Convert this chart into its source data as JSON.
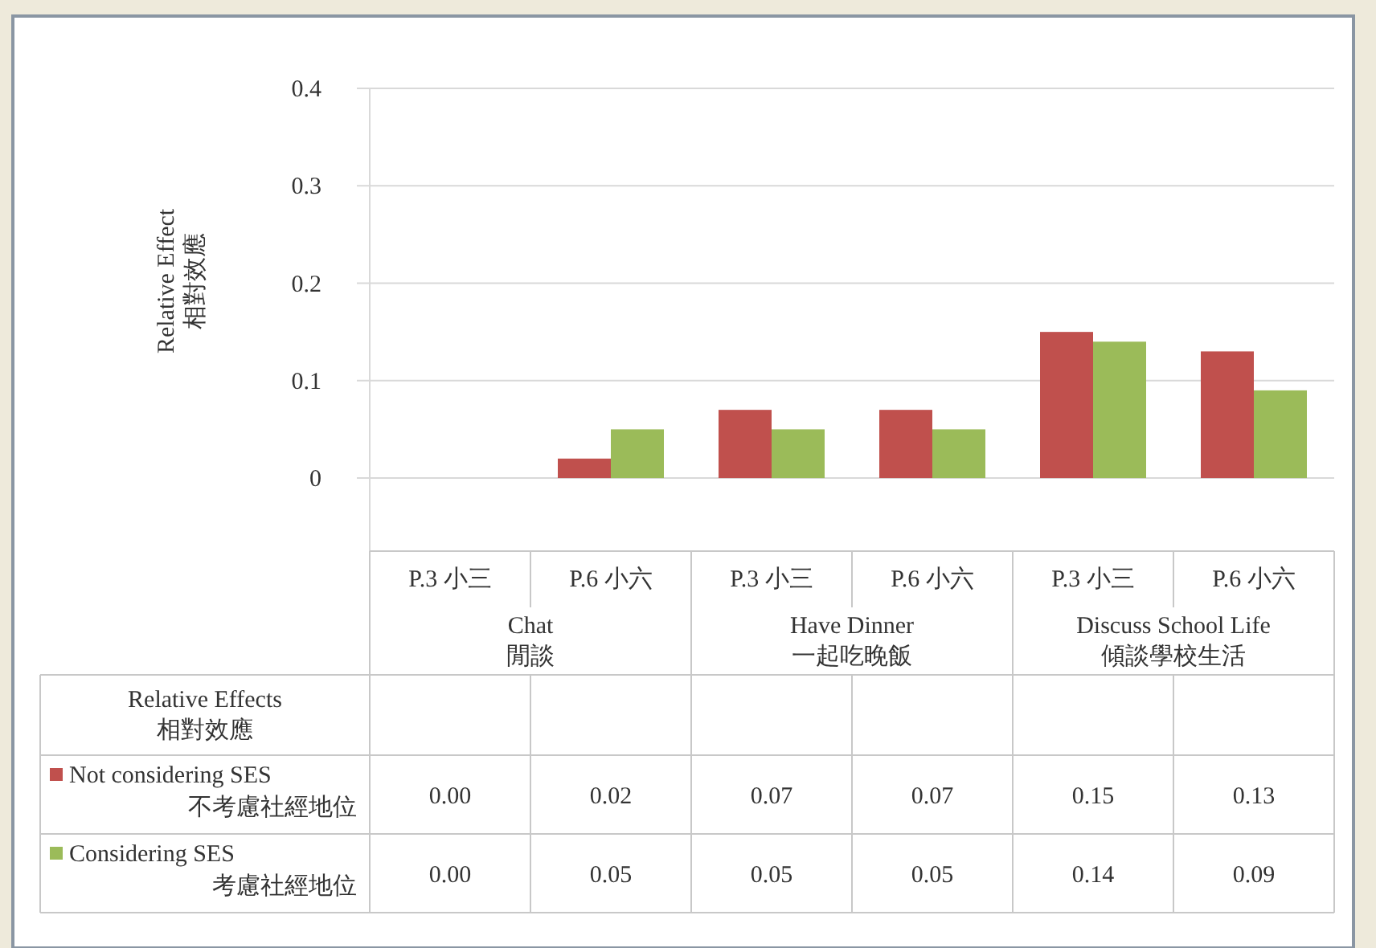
{
  "chart_data": {
    "type": "bar",
    "ylabel": "Relative Effect\n相對效應",
    "legend_title": "Relative Effects\n相對效應",
    "categories": [
      "P.3 小三",
      "P.6 小六",
      "P.3 小三",
      "P.6 小六",
      "P.3 小三",
      "P.6 小六"
    ],
    "annotations": [
      "Chat\n閒談",
      "Have Dinner\n一起吃晚飯",
      "Discuss School Life\n傾談學校生活"
    ],
    "series": [
      {
        "name": "Not considering SES\n不考慮社經地位",
        "color": "#c0504d",
        "values": [
          0,
          0.02,
          0.07,
          0.07,
          0.15,
          0.13
        ],
        "value_labels": [
          "0.00",
          "0.02",
          "0.07",
          "0.07",
          "0.15",
          "0.13"
        ]
      },
      {
        "name": "Considering SES\n考慮社經地位",
        "color": "#9bbb59",
        "values": [
          0,
          0.05,
          0.05,
          0.05,
          0.14,
          0.09
        ],
        "value_labels": [
          "0.00",
          "0.05",
          "0.05",
          "0.05",
          "0.14",
          "0.09"
        ]
      }
    ],
    "ylim": [
      -0.075,
      0.4
    ],
    "yticks": [
      0,
      0.1,
      0.2,
      0.3,
      0.4
    ],
    "grid": "y",
    "legend": "bottom"
  }
}
